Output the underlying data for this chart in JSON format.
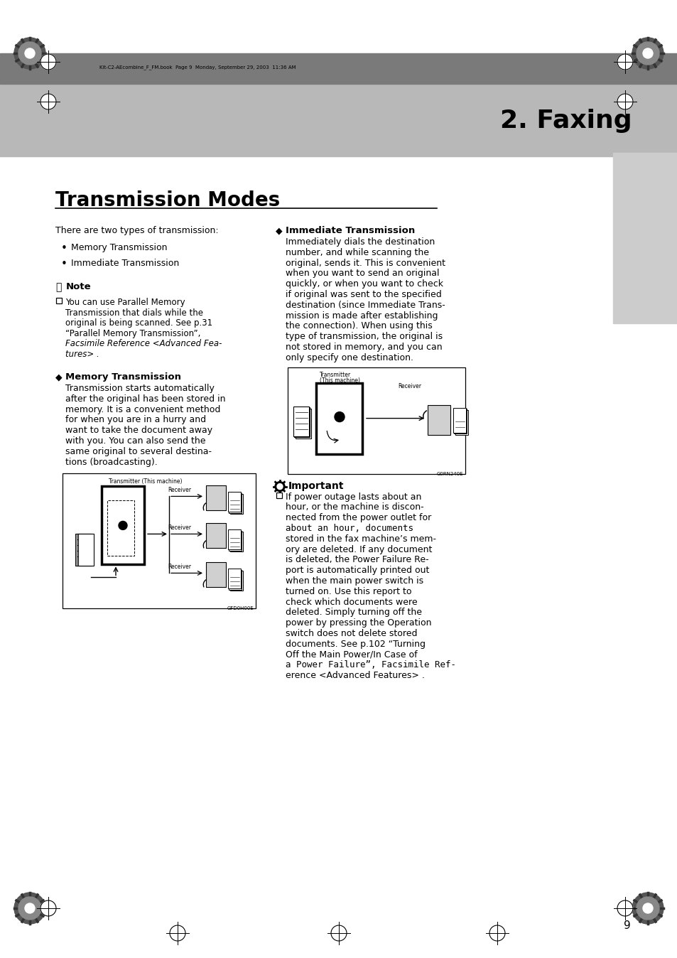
{
  "page_bg": "#ffffff",
  "header_bar_dark": "#7a7a7a",
  "header_bar_light": "#b8b8b8",
  "right_tab_color": "#cccccc",
  "header_text": "Kit-C2-AEcombine_F_FM.book  Page 9  Monday, September 29, 2003  11:36 AM",
  "chapter_title": "2. Faxing",
  "section_title": "Transmission Modes",
  "page_number": "9",
  "fig1_label": "GFD0H00E",
  "fig2_label": "G0RN240E"
}
